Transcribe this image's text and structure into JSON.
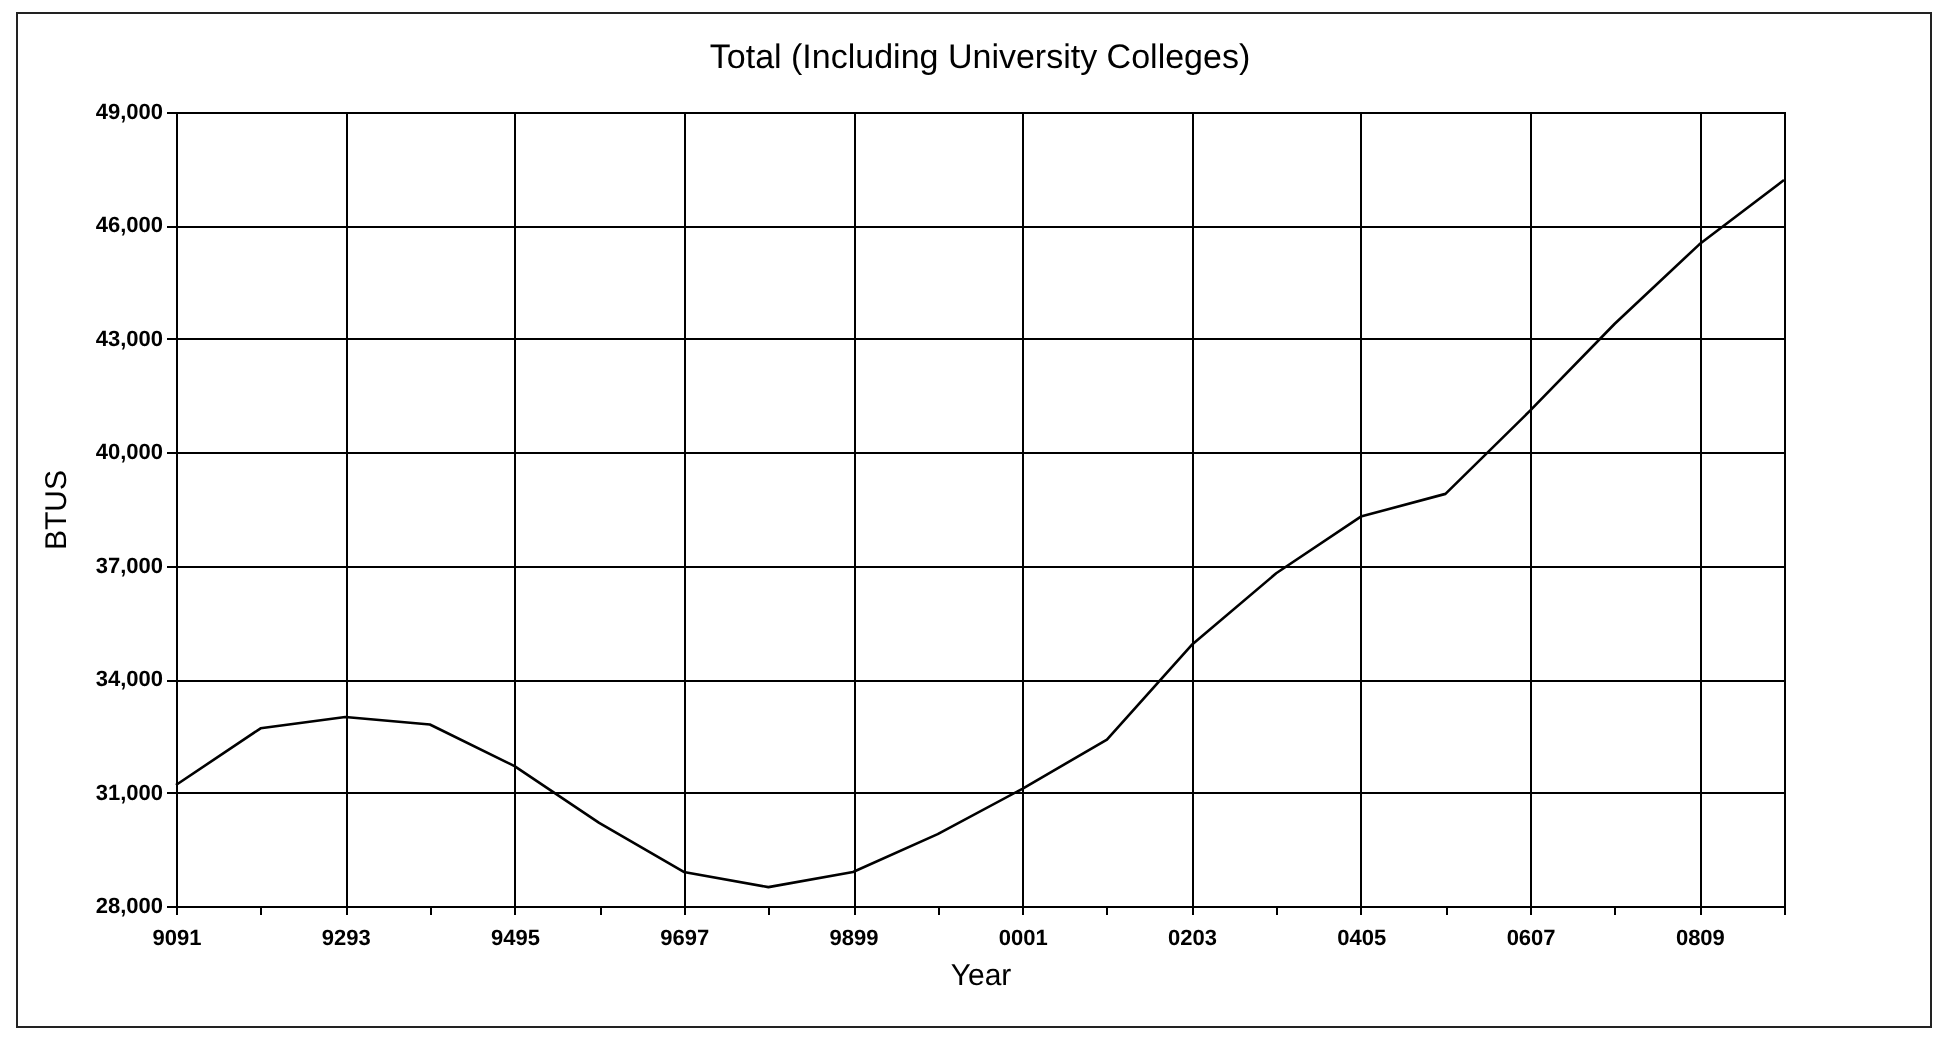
{
  "chart_data": {
    "type": "line",
    "title": "Total (Including University Colleges)",
    "xlabel": "Year",
    "ylabel": "BTUS",
    "categories": [
      "9091",
      null,
      "9293",
      null,
      "9495",
      null,
      "9697",
      null,
      "9899",
      null,
      "0001",
      null,
      "0203",
      null,
      "0405",
      null,
      "0607",
      null,
      "0809",
      null
    ],
    "series": [
      {
        "color": "#000000",
        "values": [
          31200,
          32700,
          33000,
          32800,
          31700,
          30200,
          28900,
          28500,
          28900,
          29900,
          31100,
          32400,
          34900,
          36800,
          38300,
          38900,
          41100,
          43400,
          45500,
          47200
        ]
      }
    ],
    "ylim": [
      28000,
      49000
    ],
    "yticks": [
      {
        "value": 28000,
        "label": "28,000"
      },
      {
        "value": 31000,
        "label": "31,000"
      },
      {
        "value": 34000,
        "label": "34,000"
      },
      {
        "value": 37000,
        "label": "37,000"
      },
      {
        "value": 40000,
        "label": "40,000"
      },
      {
        "value": 43000,
        "label": "43,000"
      },
      {
        "value": 46000,
        "label": "46,000"
      },
      {
        "value": 49000,
        "label": "49,000"
      }
    ],
    "grid": true,
    "marker": "none",
    "line_style": "solid"
  }
}
